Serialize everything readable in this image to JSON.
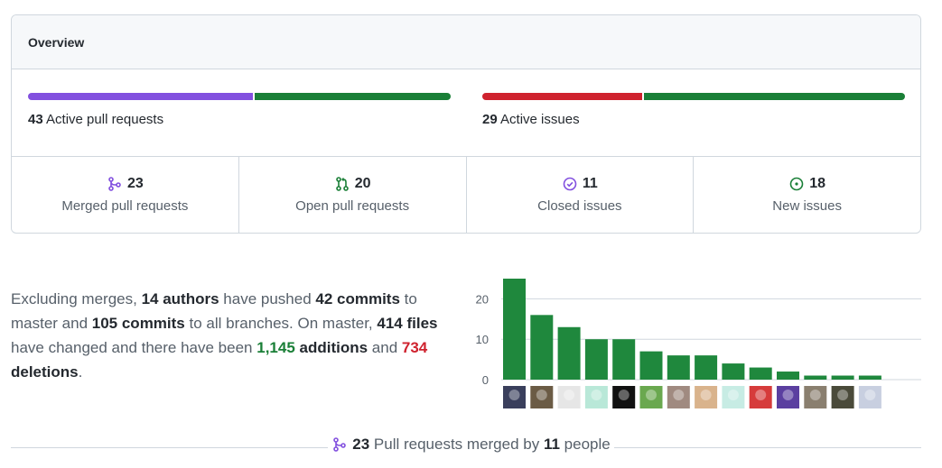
{
  "colors": {
    "merged_purple": "#8250df",
    "open_green": "#1a7f37",
    "closed_red": "#cf222e",
    "bar_green": "#1f883d",
    "border": "#d0d7de",
    "muted_text": "#57606a"
  },
  "overview": {
    "title": "Overview",
    "pull_requests": {
      "count": "43",
      "label": "Active pull requests",
      "merged_fraction": 0.535,
      "open_fraction": 0.465
    },
    "issues": {
      "count": "29",
      "label": "Active issues",
      "closed_fraction": 0.379,
      "new_fraction": 0.621
    },
    "stats": [
      {
        "icon": "merged-pr-icon",
        "count": "23",
        "label": "Merged pull requests"
      },
      {
        "icon": "open-pr-icon",
        "count": "20",
        "label": "Open pull requests"
      },
      {
        "icon": "closed-issue-icon",
        "count": "11",
        "label": "Closed issues"
      },
      {
        "icon": "new-issue-icon",
        "count": "18",
        "label": "New issues"
      }
    ]
  },
  "summary": {
    "t1": "Excluding merges, ",
    "authors": "14 authors",
    "t2": " have pushed ",
    "commits_master": "42 commits",
    "t3": " to master and ",
    "commits_all": "105 commits",
    "t4": " to all branches. On master, ",
    "files": "414 files",
    "t5": " have changed and there have been ",
    "additions_num": "1,145",
    "additions_word": " additions",
    "t6": " and ",
    "deletions_num": "734",
    "deletions_word": " deletions",
    "t7": "."
  },
  "chart_data": {
    "type": "bar",
    "values": [
      25,
      16,
      13,
      10,
      10,
      7,
      6,
      6,
      4,
      3,
      2,
      1,
      1,
      1
    ],
    "yticks": [
      "0",
      "10",
      "20"
    ],
    "ylim": [
      0,
      25
    ],
    "avatars": [
      "#3a3f5c",
      "#6b5b45",
      "#e6e6e6",
      "#b9e8d8",
      "#111111",
      "#6aa84f",
      "#a08a80",
      "#d9b38c",
      "#c7ece4",
      "#d63b3b",
      "#5b3fa0",
      "#8a7f6f",
      "#4a4a3a",
      "#c8cfe0"
    ]
  },
  "footer": {
    "count": "23",
    "text1": " Pull requests merged by ",
    "people": "11",
    "text2": " people"
  }
}
